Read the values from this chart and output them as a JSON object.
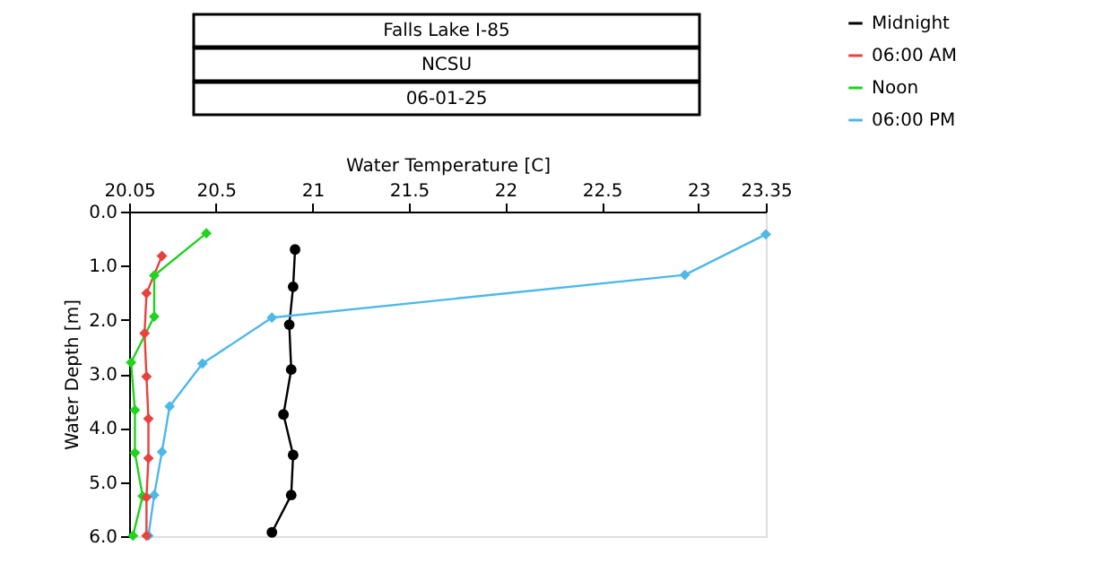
{
  "chart_data": {
    "type": "line",
    "title": "Falls Lake I-85",
    "subtitle": "NCSU",
    "annotations": [
      "06-01-25"
    ],
    "xlabel": "Water Temperature [C]",
    "ylabel": "Water Depth [m]",
    "xlim": [
      20.05,
      23.35
    ],
    "xticks": [
      20.05,
      20.5,
      21,
      21.5,
      22,
      22.5,
      23,
      23.35
    ],
    "ylim": [
      6.0,
      0.0
    ],
    "yticks": [
      {
        "value": 0,
        "label": "0.0"
      },
      {
        "value": 1,
        "label": "1.0"
      },
      {
        "value": 2,
        "label": "2.0"
      },
      {
        "value": 3,
        "label": "3.0"
      },
      {
        "value": 4,
        "label": "4.0"
      },
      {
        "value": 5,
        "label": "5.0"
      },
      {
        "value": 6,
        "label": "6.0"
      }
    ],
    "grid": false,
    "legend": "top right",
    "line_style": "solid",
    "series": [
      {
        "name": "Midnight",
        "color": "#000000",
        "marker": "circle",
        "x": [
          20.91,
          20.9,
          20.88,
          20.89,
          20.85,
          20.9,
          20.89,
          20.79
        ],
        "values": [
          0.7,
          1.39,
          2.09,
          2.92,
          3.75,
          4.5,
          5.24,
          5.93
        ]
      },
      {
        "name": "06:00 AM",
        "color": "#e8423f",
        "marker": "diamond",
        "x": [
          20.22,
          20.14,
          20.13,
          20.14,
          20.15,
          20.15,
          20.14,
          20.14
        ],
        "values": [
          0.82,
          1.51,
          2.25,
          3.05,
          3.83,
          4.56,
          5.28,
          5.99
        ]
      },
      {
        "name": "Noon",
        "color": "#1fd31f",
        "marker": "diamond",
        "x": [
          20.45,
          20.18,
          20.18,
          20.06,
          20.08,
          20.08,
          20.12,
          20.07
        ],
        "values": [
          0.4,
          1.18,
          1.94,
          2.79,
          3.67,
          4.46,
          5.26,
          5.99
        ]
      },
      {
        "name": "06:00 PM",
        "color": "#4db8ea",
        "marker": "diamond",
        "x": [
          23.35,
          22.93,
          20.79,
          20.43,
          20.26,
          20.22,
          20.18,
          20.15
        ],
        "values": [
          0.42,
          1.17,
          1.96,
          2.81,
          3.6,
          4.44,
          5.24,
          5.99
        ]
      }
    ]
  }
}
